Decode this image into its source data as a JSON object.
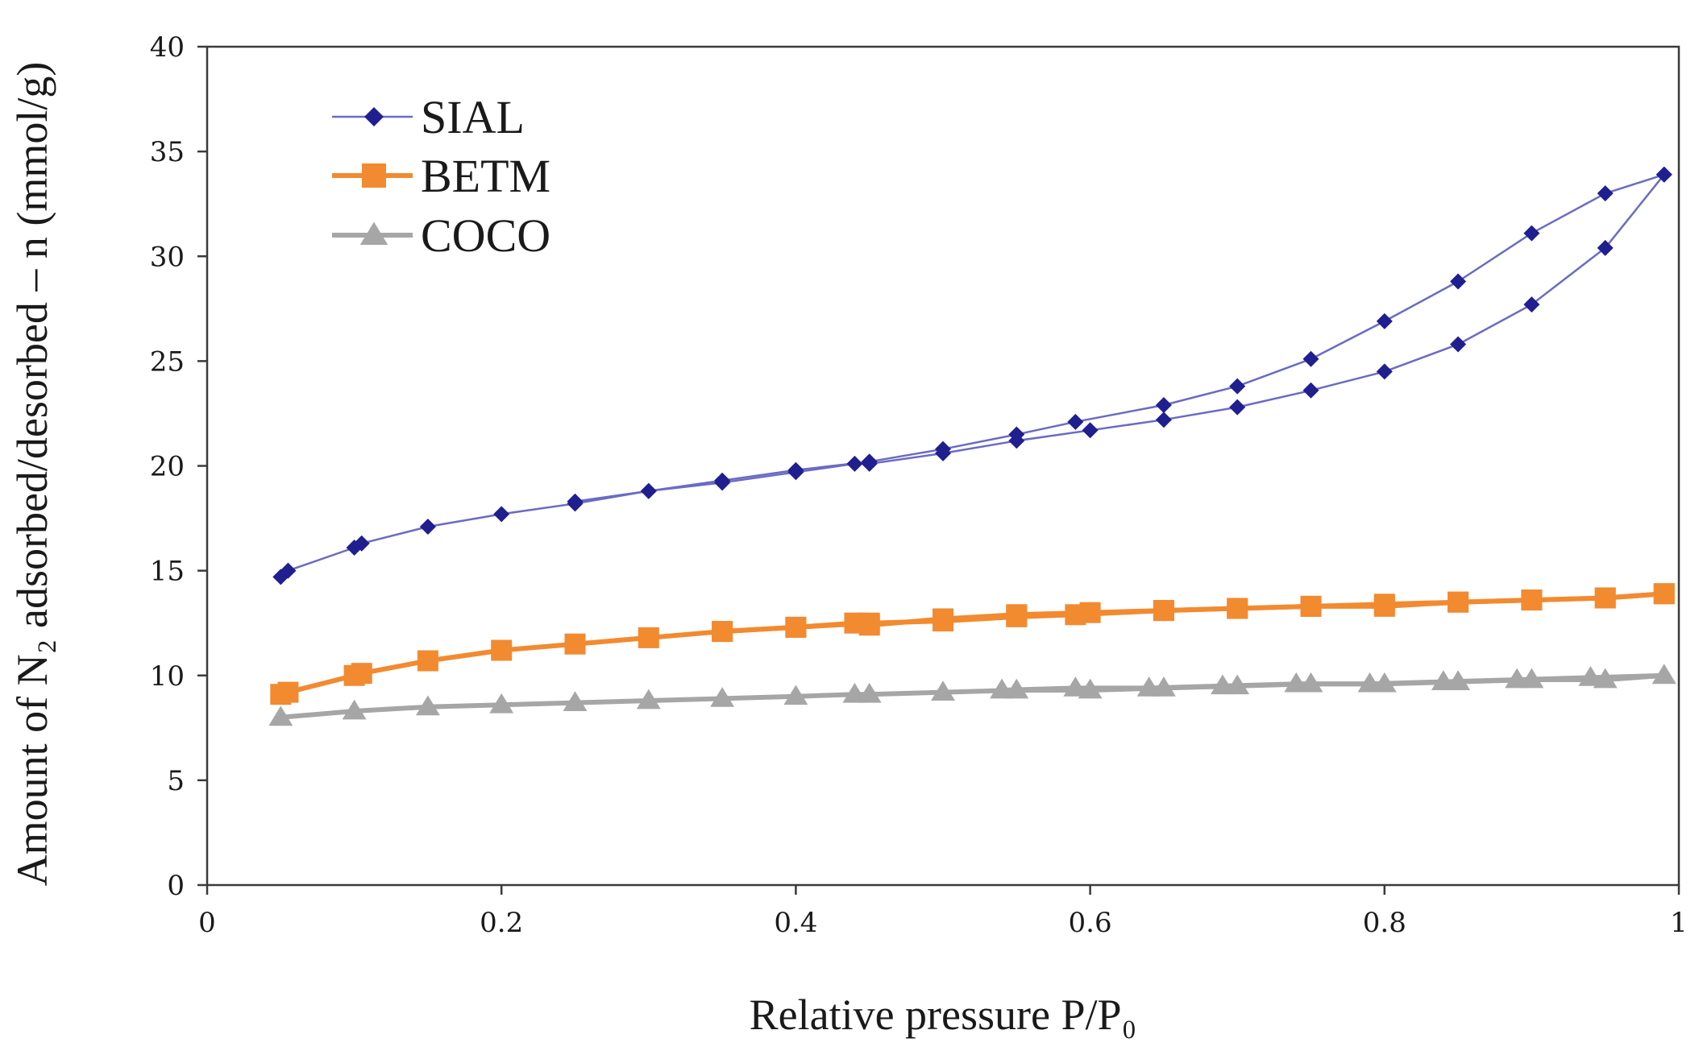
{
  "chart_data": {
    "type": "line",
    "title": "",
    "xlabel": "Relative pressure P/P₀",
    "ylabel": "Amount of N₂ adsorbed/desorbed – n (mmol/g)",
    "xlim": [
      0,
      1
    ],
    "ylim": [
      0,
      40
    ],
    "x_ticks": [
      0,
      0.2,
      0.4,
      0.6,
      0.8,
      1
    ],
    "x_tick_labels": [
      "0",
      "0.2",
      "0.4",
      "0.6",
      "0.8",
      "1"
    ],
    "y_ticks": [
      0,
      5,
      10,
      15,
      20,
      25,
      30,
      35,
      40
    ],
    "y_tick_labels": [
      "0",
      "5",
      "10",
      "15",
      "20",
      "25",
      "30",
      "35",
      "40"
    ],
    "grid": false,
    "legend_position": "top-left",
    "series": [
      {
        "name": "SIAL",
        "color": "#1f1f8f",
        "line_color": "#6b6bc4",
        "marker": "diamond",
        "branches": [
          {
            "x": [
              0.05,
              0.055,
              0.1,
              0.105,
              0.15,
              0.2,
              0.25,
              0.3,
              0.35,
              0.4,
              0.44,
              0.45,
              0.5,
              0.55,
              0.6,
              0.65,
              0.7,
              0.75,
              0.8,
              0.85,
              0.9,
              0.95,
              0.99
            ],
            "y": [
              14.7,
              15.0,
              16.1,
              16.3,
              17.1,
              17.7,
              18.2,
              18.8,
              19.2,
              19.7,
              20.1,
              20.1,
              20.6,
              21.2,
              21.7,
              22.2,
              22.8,
              23.6,
              24.5,
              25.8,
              27.7,
              30.4,
              33.9
            ]
          },
          {
            "x": [
              0.99,
              0.95,
              0.9,
              0.85,
              0.8,
              0.75,
              0.7,
              0.65,
              0.59,
              0.55,
              0.5,
              0.45,
              0.4,
              0.35,
              0.3,
              0.25
            ],
            "y": [
              33.9,
              33.0,
              31.1,
              28.8,
              26.9,
              25.1,
              23.8,
              22.9,
              22.1,
              21.5,
              20.8,
              20.2,
              19.8,
              19.3,
              18.8,
              18.3
            ]
          }
        ]
      },
      {
        "name": "BETM",
        "color": "#f28a30",
        "line_color": "#f28a30",
        "marker": "square",
        "branches": [
          {
            "x": [
              0.05,
              0.055,
              0.1,
              0.105,
              0.15,
              0.2,
              0.25,
              0.3,
              0.35,
              0.4,
              0.44,
              0.45,
              0.5,
              0.55,
              0.6,
              0.65,
              0.7,
              0.75,
              0.8,
              0.85,
              0.9,
              0.95,
              0.99
            ],
            "y": [
              9.1,
              9.2,
              10.0,
              10.1,
              10.7,
              11.2,
              11.5,
              11.8,
              12.1,
              12.3,
              12.5,
              12.4,
              12.7,
              12.9,
              13.0,
              13.1,
              13.2,
              13.3,
              13.4,
              13.5,
              13.6,
              13.7,
              13.9
            ]
          },
          {
            "x": [
              0.99,
              0.95,
              0.9,
              0.85,
              0.8,
              0.75,
              0.7,
              0.65,
              0.59,
              0.55,
              0.5,
              0.45,
              0.4,
              0.35
            ],
            "y": [
              13.9,
              13.7,
              13.6,
              13.5,
              13.3,
              13.3,
              13.2,
              13.1,
              12.9,
              12.8,
              12.6,
              12.5,
              12.3,
              12.1
            ]
          }
        ]
      },
      {
        "name": "COCO",
        "color": "#a6a6a6",
        "line_color": "#a6a6a6",
        "marker": "triangle",
        "branches": [
          {
            "x": [
              0.05,
              0.1,
              0.15,
              0.2,
              0.25,
              0.3,
              0.35,
              0.4,
              0.44,
              0.45,
              0.5,
              0.55,
              0.6,
              0.65,
              0.7,
              0.75,
              0.8,
              0.85,
              0.9,
              0.95,
              0.99
            ],
            "y": [
              8.0,
              8.3,
              8.5,
              8.6,
              8.7,
              8.8,
              8.9,
              9.0,
              9.1,
              9.1,
              9.2,
              9.3,
              9.3,
              9.4,
              9.5,
              9.6,
              9.6,
              9.7,
              9.8,
              9.8,
              10.0
            ]
          },
          {
            "x": [
              0.99,
              0.94,
              0.89,
              0.84,
              0.79,
              0.74,
              0.69,
              0.64,
              0.59,
              0.54
            ],
            "y": [
              10.0,
              9.9,
              9.8,
              9.7,
              9.6,
              9.6,
              9.5,
              9.4,
              9.4,
              9.3
            ]
          }
        ]
      }
    ]
  }
}
